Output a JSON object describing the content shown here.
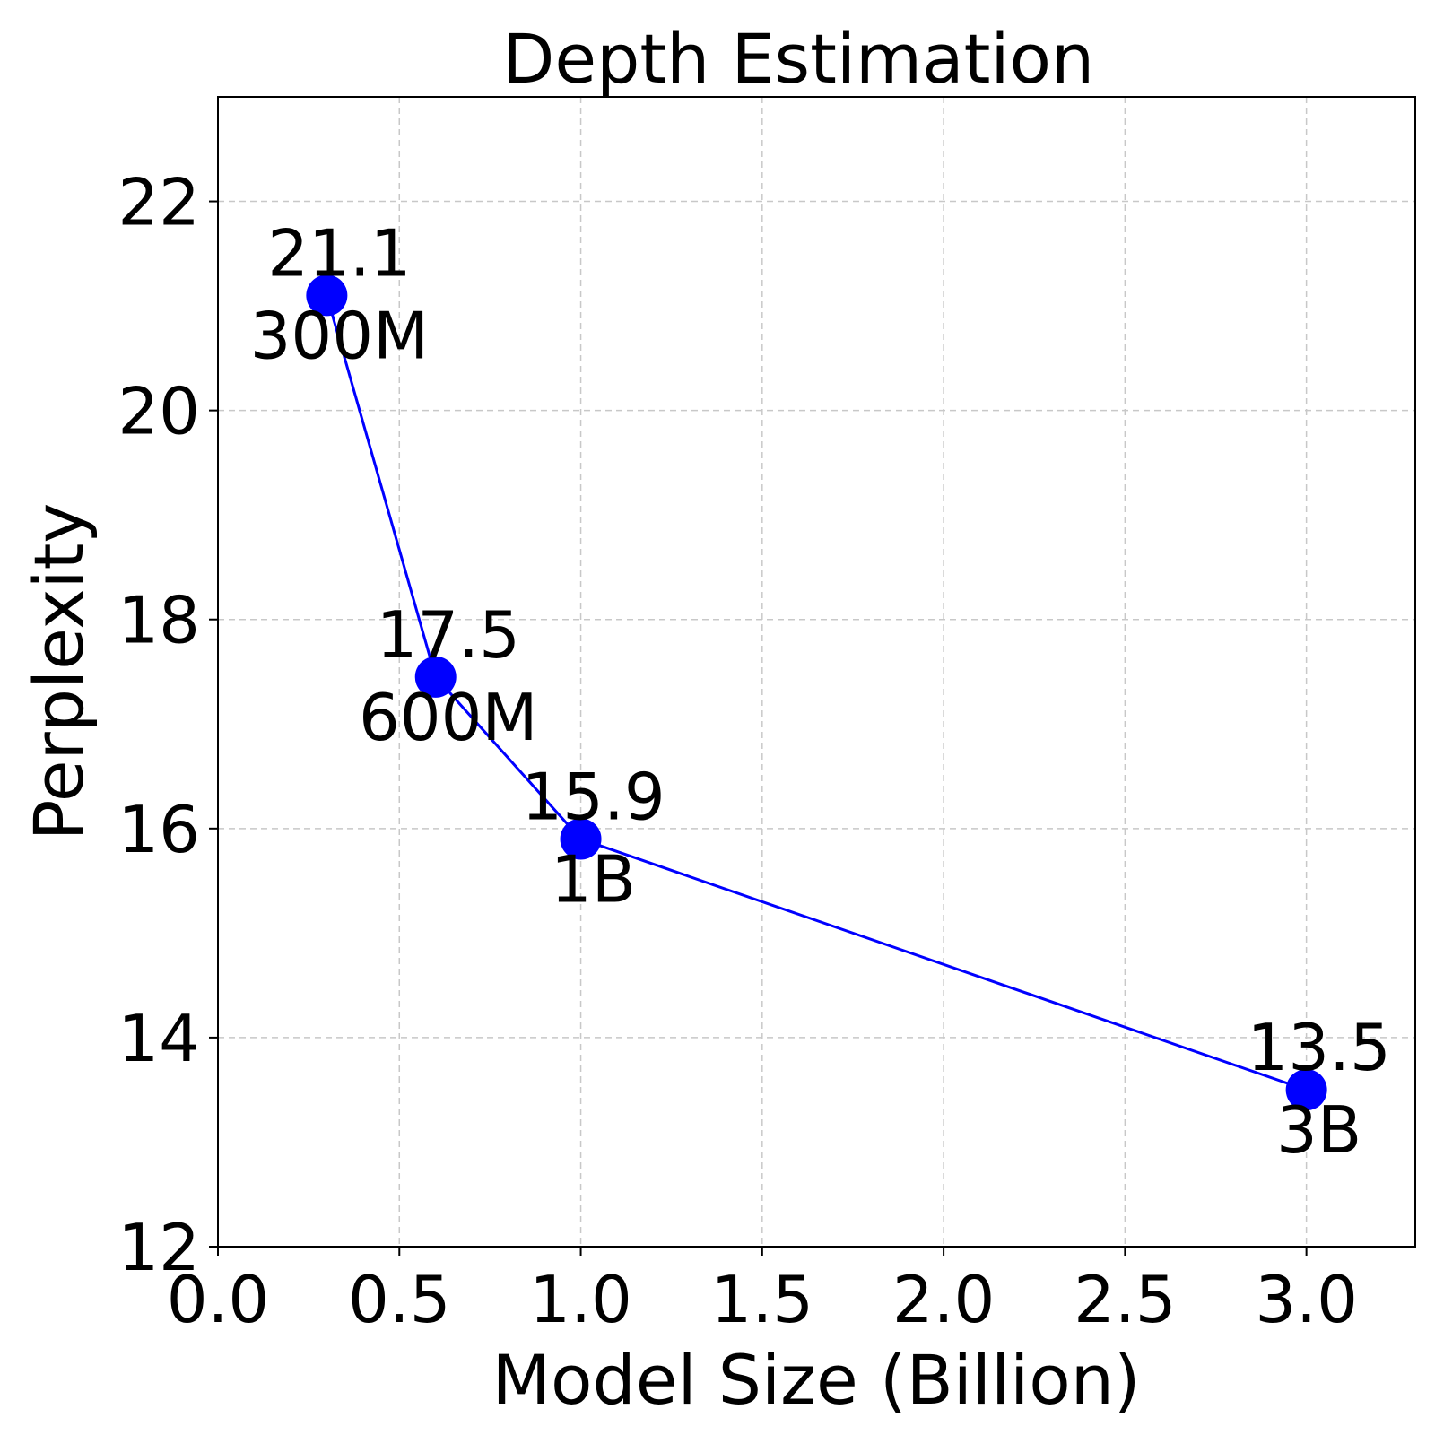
{
  "chart_data": {
    "type": "line",
    "title": "Depth Estimation",
    "xlabel": "Model Size (Billion)",
    "ylabel": "Perplexity",
    "xlim": [
      0.0,
      3.3
    ],
    "ylim": [
      12,
      23
    ],
    "xticks": [
      0.0,
      0.5,
      1.0,
      1.5,
      2.0,
      2.5,
      3.0
    ],
    "xtick_labels": [
      "0.0",
      "0.5",
      "1.0",
      "1.5",
      "2.0",
      "2.5",
      "3.0"
    ],
    "yticks": [
      12,
      14,
      16,
      18,
      20,
      22
    ],
    "ytick_labels": [
      "12",
      "14",
      "16",
      "18",
      "20",
      "22"
    ],
    "grid": true,
    "series": [
      {
        "color": "#0000ff",
        "marker": "circle",
        "x": [
          0.3,
          0.6,
          1.0,
          3.0
        ],
        "y": [
          21.1,
          17.45,
          15.9,
          13.5
        ],
        "value_labels": [
          "21.1",
          "17.5",
          "15.9",
          "13.5"
        ],
        "point_labels": [
          "300M",
          "600M",
          "1B",
          "3B"
        ]
      }
    ]
  }
}
